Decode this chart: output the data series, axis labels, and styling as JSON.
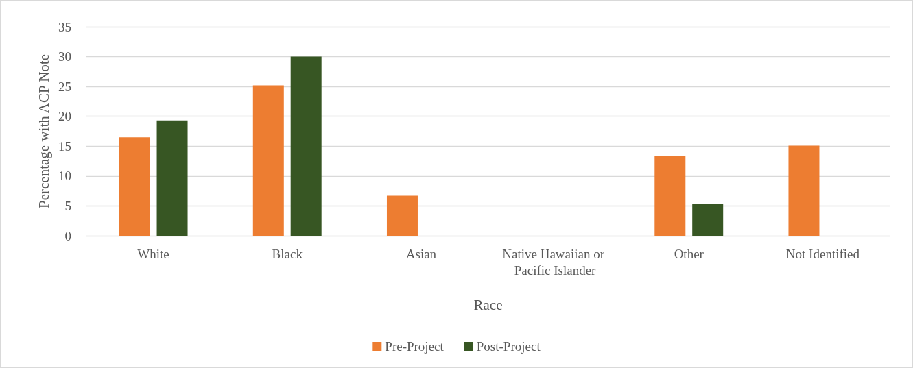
{
  "chart_data": {
    "type": "bar",
    "xlabel": "Race",
    "ylabel": "Percentage with ACP Note",
    "categories": [
      "White",
      "Black",
      "Asian",
      "Native Hawaiian or Pacific Islander",
      "Other",
      "Not Identified"
    ],
    "series": [
      {
        "name": "Pre-Project",
        "color": "#ed7d31",
        "values": [
          16.5,
          25.2,
          6.7,
          0,
          13.3,
          15.1
        ]
      },
      {
        "name": "Post-Project",
        "color": "#375623",
        "values": [
          19.3,
          30.0,
          0,
          0,
          5.3,
          0
        ]
      }
    ],
    "ylim": [
      0,
      35
    ],
    "yticks": [
      0,
      5,
      10,
      15,
      20,
      25,
      30,
      35
    ],
    "grid": "y",
    "legend": "bottom"
  }
}
